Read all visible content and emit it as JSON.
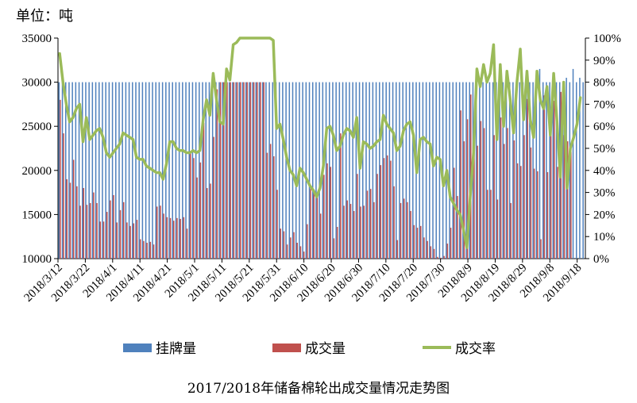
{
  "chart_data": {
    "type": "bar",
    "title": "2017/2018年储备棉轮出成交量情况走势图",
    "unit_label": "单位：吨",
    "y_left": {
      "min": 10000,
      "max": 35000,
      "ticks": [
        10000,
        15000,
        20000,
        25000,
        30000,
        35000
      ]
    },
    "y_right": {
      "min": 0,
      "max": 100,
      "ticks": [
        "0%",
        "10%",
        "20%",
        "30%",
        "40%",
        "50%",
        "60%",
        "70%",
        "80%",
        "90%",
        "100%"
      ]
    },
    "x_tick_labels": [
      "2018/3/12",
      "2018/3/22",
      "2018/4/1",
      "2018/4/11",
      "2018/4/21",
      "2018/5/1",
      "2018/5/11",
      "2018/5/21",
      "2018/5/31",
      "2018/6/10",
      "2018/6/20",
      "2018/6/30",
      "2018/7/10",
      "2018/7/20",
      "2018/7/30",
      "2018/8/9",
      "2018/8/19",
      "2018/8/29",
      "2018/9/8",
      "2018/9/18"
    ],
    "legend": [
      "挂牌量",
      "成交量",
      "成交率"
    ],
    "colors": {
      "listed": "#4f81bd",
      "traded": "#c0504d",
      "rate": "#9bbb59"
    },
    "series": [
      {
        "name": "挂牌量",
        "values": [
          30000,
          30000,
          30000,
          30000,
          30000,
          30000,
          30000,
          30000,
          30000,
          30000,
          30000,
          30000,
          30000,
          30000,
          30000,
          30000,
          30000,
          30000,
          30000,
          30000,
          30000,
          30000,
          30000,
          30000,
          30000,
          30000,
          30000,
          30000,
          30000,
          30000,
          30000,
          30000,
          30000,
          30000,
          30000,
          30000,
          30000,
          30000,
          30000,
          30000,
          30000,
          30000,
          30000,
          30000,
          30000,
          30000,
          30000,
          30000,
          30000,
          30000,
          30000,
          30000,
          30000,
          30000,
          30000,
          30000,
          30000,
          30000,
          30000,
          30000,
          30000,
          30000,
          30000,
          30000,
          30000,
          30000,
          30000,
          30000,
          30000,
          30000,
          30000,
          30000,
          30000,
          30000,
          30000,
          30000,
          30000,
          30000,
          30000,
          30000,
          30000,
          30000,
          30000,
          30000,
          30000,
          30000,
          30000,
          30000,
          30000,
          30000,
          30000,
          30000,
          30000,
          30000,
          30000,
          30000,
          30000,
          30000,
          30000,
          30000,
          30000,
          30000,
          30000,
          30000,
          30000,
          30000,
          30000,
          30000,
          30000,
          30000,
          30000,
          30000,
          30000,
          30000,
          30000,
          30000,
          30000,
          30000,
          30000,
          30000,
          30000,
          30000,
          30000,
          30000,
          30000,
          30000,
          30000,
          30000,
          30000,
          30000,
          30000,
          30000,
          30000,
          30000,
          30000,
          30000,
          30000,
          30000,
          30000,
          30000,
          30000,
          30000,
          30000,
          30000,
          31500,
          30000,
          30000,
          30000,
          30000,
          30000,
          30000,
          30000,
          30500,
          30000,
          31500,
          30000,
          30500,
          30000
        ]
      },
      {
        "name": "成交量",
        "values": [
          28000,
          24200,
          19000,
          18600,
          21200,
          18200,
          16000,
          18000,
          16100,
          16300,
          17500,
          16300,
          14200,
          14200,
          15300,
          16600,
          17200,
          14100,
          15500,
          16400,
          14100,
          13700,
          14000,
          14400,
          12200,
          12000,
          11800,
          11900,
          11600,
          15900,
          16000,
          15100,
          14700,
          14600,
          14300,
          14600,
          14500,
          14700,
          13400,
          21900,
          21400,
          19200,
          20900,
          25400,
          18000,
          18500,
          23800,
          29200,
          30000,
          30000,
          30000,
          30000,
          30000,
          30000,
          30000,
          30000,
          30000,
          30000,
          30000,
          30000,
          30000,
          30000,
          22000,
          23000,
          21600,
          17800,
          13400,
          13100,
          11600,
          12400,
          13000,
          11800,
          11400,
          10800,
          13900,
          17900,
          17700,
          17500,
          15100,
          19500,
          20800,
          20400,
          12300,
          13600,
          24200,
          16000,
          16600,
          16200,
          15400,
          19600,
          15900,
          16000,
          17700,
          17900,
          16400,
          19600,
          20600,
          21400,
          21700,
          21100,
          18200,
          12100,
          16300,
          16800,
          16400,
          15400,
          13800,
          13500,
          13700,
          12400,
          12000,
          11400,
          11100,
          10200,
          10100,
          10300,
          11700,
          13500,
          20300,
          17100,
          26800,
          23300,
          25800,
          28600,
          24200,
          22800,
          25600,
          24800,
          17800,
          17800,
          24000,
          16700,
          26000,
          23000,
          24800,
          16300,
          23400,
          20800,
          20500,
          24000,
          28100,
          22600,
          20200,
          19900,
          12200,
          28500,
          19800,
          26400,
          27900,
          20400,
          28900,
          24000,
          23300,
          22100
        ]
      },
      {
        "name": "成交率",
        "values": [
          93,
          80,
          70,
          62,
          64,
          68,
          70,
          53,
          64,
          54,
          56,
          58,
          59,
          55,
          48,
          46,
          48,
          50,
          52,
          57,
          56,
          55,
          54,
          46,
          45,
          45,
          42,
          41,
          40,
          39,
          39,
          36,
          43,
          53,
          53,
          50,
          49,
          49,
          48,
          48,
          49,
          48,
          49,
          63,
          72,
          65,
          84,
          72,
          62,
          61,
          86,
          81,
          97,
          98,
          100,
          100,
          100,
          100,
          100,
          100,
          100,
          100,
          100,
          100,
          99,
          59,
          61,
          54,
          46,
          40,
          38,
          33,
          41,
          39,
          36,
          33,
          31,
          28,
          32,
          42,
          59,
          60,
          56,
          49,
          51,
          56,
          59,
          58,
          55,
          64,
          41,
          53,
          52,
          50,
          51,
          53,
          54,
          65,
          61,
          59,
          57,
          49,
          51,
          58,
          61,
          62,
          56,
          39,
          54,
          55,
          53,
          52,
          42,
          46,
          45,
          33,
          40,
          28,
          25,
          22,
          20,
          13,
          5,
          28,
          48,
          86,
          78,
          88,
          80,
          84,
          97,
          54,
          88,
          60,
          85,
          72,
          57,
          80,
          95,
          63,
          85,
          63,
          55,
          85,
          72,
          68,
          78,
          56,
          84,
          62,
          37,
          80,
          32,
          50,
          55,
          61,
          73
        ]
      }
    ]
  }
}
